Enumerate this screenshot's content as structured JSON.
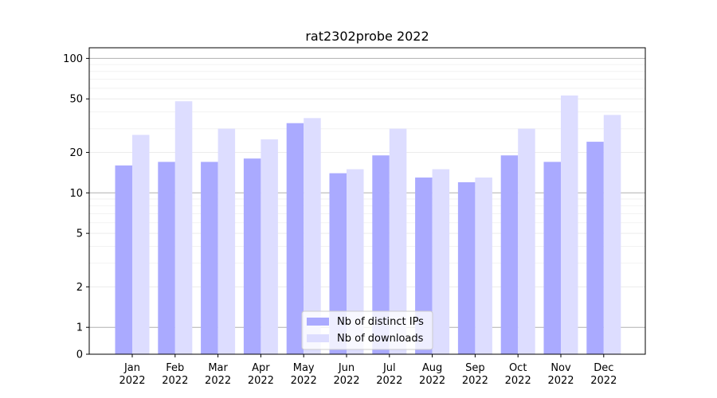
{
  "chart_data": {
    "type": "bar",
    "title": "rat2302probe 2022",
    "xlabel": "",
    "ylabel": "",
    "scale": "symlog",
    "ylim": [
      0,
      120
    ],
    "yticks": [
      0,
      1,
      2,
      5,
      10,
      20,
      50,
      100
    ],
    "categories": [
      "Jan\n2022",
      "Feb\n2022",
      "Mar\n2022",
      "Apr\n2022",
      "May\n2022",
      "Jun\n2022",
      "Jul\n2022",
      "Aug\n2022",
      "Sep\n2022",
      "Oct\n2022",
      "Nov\n2022",
      "Dec\n2022"
    ],
    "series": [
      {
        "name": "Nb of distinct IPs",
        "color": "#aaaaff",
        "values": [
          16,
          17,
          17,
          18,
          33,
          14,
          19,
          13,
          12,
          19,
          17,
          24
        ]
      },
      {
        "name": "Nb of downloads",
        "color": "#ddddff",
        "values": [
          27,
          48,
          30,
          25,
          36,
          15,
          30,
          15,
          13,
          30,
          53,
          38
        ]
      }
    ],
    "legend": "lower-center",
    "grid": "horizontal"
  }
}
